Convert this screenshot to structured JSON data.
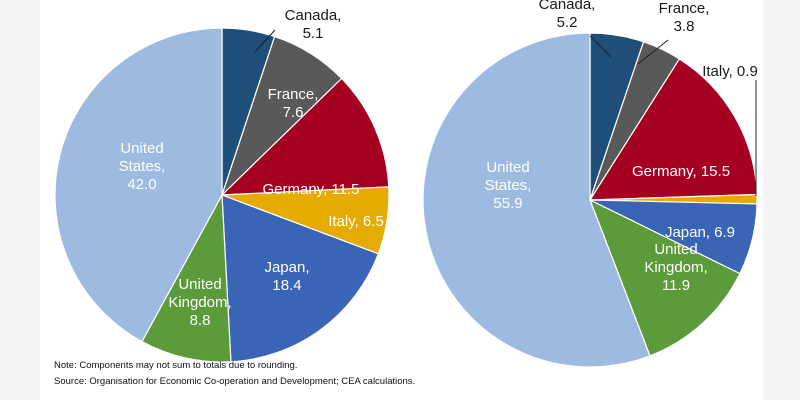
{
  "chart_data": [
    {
      "type": "pie",
      "title": "",
      "slices": [
        {
          "label": [
            "Canada,",
            "5.1"
          ],
          "value": 5.1,
          "color": "#1f4e79",
          "text_color": "#1a1a1a"
        },
        {
          "label": [
            "France,",
            "7.6"
          ],
          "value": 7.6,
          "color": "#595959",
          "text_color": "#ffffff"
        },
        {
          "label": [
            "Germany, 11.5"
          ],
          "value": 11.5,
          "color": "#a50021",
          "text_color": "#ffffff"
        },
        {
          "label": [
            "Italy, 6.5"
          ],
          "value": 6.5,
          "color": "#e5ab00",
          "text_color": "#ffffff"
        },
        {
          "label": [
            "Japan,",
            "18.4"
          ],
          "value": 18.4,
          "color": "#3a64b5",
          "text_color": "#ffffff"
        },
        {
          "label": [
            "United",
            "Kingdom,",
            "8.8"
          ],
          "value": 8.8,
          "color": "#5b9b3a",
          "text_color": "#ffffff"
        },
        {
          "label": [
            "United",
            "States,",
            "42.0"
          ],
          "value": 42.0,
          "color": "#9dbbe1",
          "text_color": "#ffffff"
        }
      ]
    },
    {
      "type": "pie",
      "title": "",
      "slices": [
        {
          "label": [
            "Canada,",
            "5.2"
          ],
          "value": 5.2,
          "color": "#1f4e79",
          "text_color": "#1a1a1a"
        },
        {
          "label": [
            "France,",
            "3.8"
          ],
          "value": 3.8,
          "color": "#595959",
          "text_color": "#1a1a1a"
        },
        {
          "label": [
            "Germany, 15.5"
          ],
          "value": 15.5,
          "color": "#a50021",
          "text_color": "#ffffff"
        },
        {
          "label": [
            "Italy, 0.9"
          ],
          "value": 0.9,
          "color": "#e5ab00",
          "text_color": "#1a1a1a"
        },
        {
          "label": [
            "Japan, 6.9"
          ],
          "value": 6.9,
          "color": "#3a64b5",
          "text_color": "#ffffff"
        },
        {
          "label": [
            "United",
            "Kingdom,",
            "11.9"
          ],
          "value": 11.9,
          "color": "#5b9b3a",
          "text_color": "#ffffff"
        },
        {
          "label": [
            "United",
            "States,",
            "55.9"
          ],
          "value": 55.9,
          "color": "#9dbbe1",
          "text_color": "#ffffff"
        }
      ]
    }
  ],
  "notes": {
    "note": "Note: Components  may not sum to totals due to rounding.",
    "source": "Source: Organisation for Economic Co-operation and Development; CEA calculations."
  }
}
